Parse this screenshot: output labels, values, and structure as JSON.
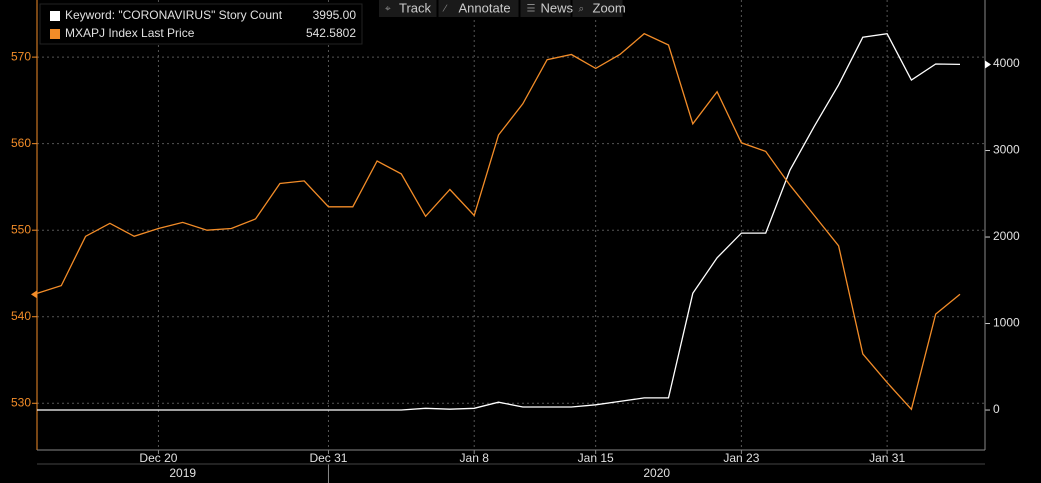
{
  "chart_data": {
    "type": "line",
    "toolbar": [
      "Track",
      "Annotate",
      "News",
      "Zoom"
    ],
    "categories": [
      null,
      null,
      null,
      null,
      null,
      "Dec 20",
      null,
      null,
      null,
      null,
      null,
      null,
      "Dec 31",
      null,
      null,
      null,
      null,
      null,
      "Jan 8",
      null,
      null,
      null,
      null,
      "Jan 15",
      null,
      null,
      null,
      null,
      null,
      "Jan 23",
      null,
      null,
      null,
      null,
      null,
      "Jan 31",
      null,
      null,
      null
    ],
    "x_groups": [
      "2019",
      "2020"
    ],
    "series": [
      {
        "name": "Keyword: \"CORONAVIRUS\" Story Count",
        "color": "#ffffff",
        "axis": "y2",
        "last": {
          "value": 3995,
          "label": "3995.00"
        },
        "values": [
          0,
          0,
          0,
          0,
          0,
          0,
          0,
          0,
          0,
          0,
          0,
          0,
          0,
          0,
          0,
          0,
          20,
          10,
          20,
          90,
          35,
          35,
          35,
          60,
          100,
          140,
          140,
          1350,
          1760,
          2045,
          2045,
          2775,
          3280,
          3760,
          4310,
          4350,
          3815,
          4000,
          3995
        ]
      },
      {
        "name": "MXAPJ Index Last Price",
        "color": "#f28c28",
        "axis": "y",
        "last": 542.5802,
        "values": [
          542.7,
          543.6,
          549.3,
          550.8,
          549.3,
          550.2,
          550.9,
          550.0,
          550.2,
          551.3,
          555.4,
          555.7,
          552.7,
          552.7,
          558.0,
          556.5,
          551.6,
          554.7,
          551.7,
          561.0,
          564.6,
          569.7,
          570.3,
          568.7,
          570.3,
          572.7,
          571.4,
          562.3,
          566.0,
          560.1,
          559.1,
          555.2,
          551.7,
          548.2,
          535.7,
          532.4,
          529.3,
          540.3,
          542.6
        ]
      }
    ],
    "ylim": [
      524.6,
      576.6
    ],
    "yticks": [
      530,
      540,
      550,
      560,
      570
    ],
    "y2lim": [
      -462,
      4740
    ],
    "y2ticks": [
      0,
      1000,
      2000,
      3000,
      4000
    ],
    "grid": true
  }
}
